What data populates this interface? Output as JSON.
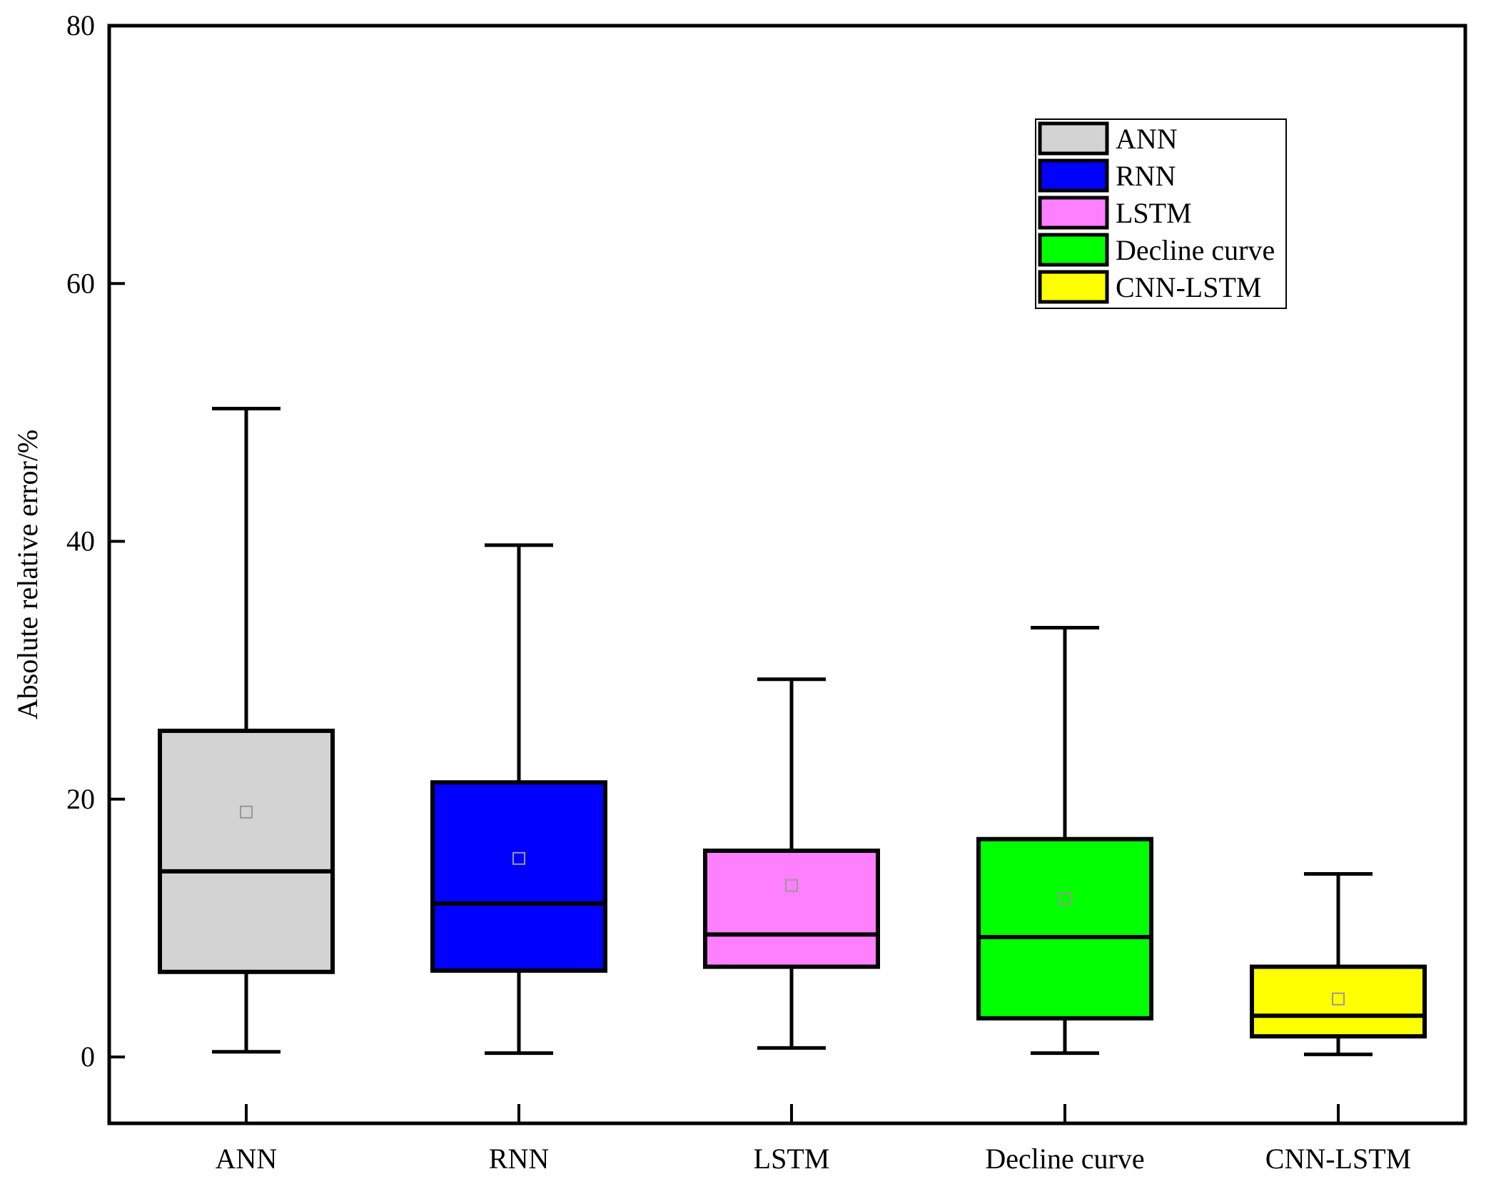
{
  "chart_data": {
    "type": "boxplot",
    "ylabel": "Absolute relative error/%",
    "xlabel": "",
    "ylim": [
      -5,
      80
    ],
    "yticks": [
      "0",
      "20",
      "40",
      "60",
      "80"
    ],
    "categories": [
      "ANN",
      "RNN",
      "LSTM",
      "Decline curve",
      "CNN-LSTM"
    ],
    "series": [
      {
        "name": "ANN",
        "color": "#D3D3D3",
        "min": 0.4,
        "q1": 6.6,
        "median": 14.4,
        "q3": 25.3,
        "max": 50.3,
        "mean": 19.0
      },
      {
        "name": "RNN",
        "color": "#0000FF",
        "min": 0.3,
        "q1": 6.7,
        "median": 11.9,
        "q3": 21.3,
        "max": 39.7,
        "mean": 15.4
      },
      {
        "name": "LSTM",
        "color": "#FF80FF",
        "min": 0.7,
        "q1": 7.0,
        "median": 9.5,
        "q3": 16.0,
        "max": 29.3,
        "mean": 13.3
      },
      {
        "name": "Decline curve",
        "color": "#00FF00",
        "min": 0.3,
        "q1": 3.0,
        "median": 9.3,
        "q3": 16.9,
        "max": 33.3,
        "mean": 12.3
      },
      {
        "name": "CNN-LSTM",
        "color": "#FFFF00",
        "min": 0.2,
        "q1": 1.6,
        "median": 3.2,
        "q3": 7.0,
        "max": 14.2,
        "mean": 4.5
      }
    ],
    "legend": [
      "ANN",
      "RNN",
      "LSTM",
      "Decline curve",
      "CNN-LSTM"
    ],
    "legend_position": "top-right",
    "grid": false
  }
}
